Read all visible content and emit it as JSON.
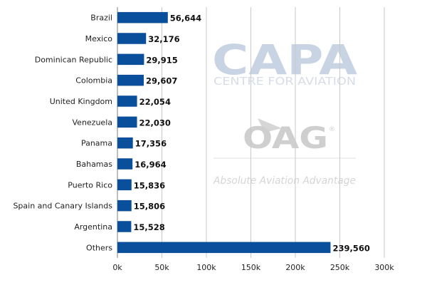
{
  "chart_data": {
    "type": "bar",
    "orientation": "horizontal",
    "categories": [
      "Brazil",
      "Mexico",
      "Dominican Republic",
      "Colombia",
      "United Kingdom",
      "Venezuela",
      "Panama",
      "Bahamas",
      "Puerto Rico",
      "Spain and Canary Islands",
      "Argentina",
      "Others"
    ],
    "values": [
      56644,
      32176,
      29915,
      29607,
      22054,
      22030,
      17356,
      16964,
      15836,
      15806,
      15528,
      239560
    ],
    "value_labels": [
      "56,644",
      "32,176",
      "29,915",
      "29,607",
      "22,054",
      "22,030",
      "17,356",
      "16,964",
      "15,836",
      "15,806",
      "15,528",
      "239,560"
    ],
    "xlim": [
      0,
      300000
    ],
    "xticks": [
      0,
      50000,
      100000,
      150000,
      200000,
      250000,
      300000
    ],
    "xtick_labels": [
      "0k",
      "50k",
      "100k",
      "150k",
      "200k",
      "250k",
      "300k"
    ],
    "grid": "vertical",
    "bar_color": "#0a4f9c",
    "gridline_color": "#c8c8c8"
  },
  "watermark": {
    "capa_logo": "CAPA",
    "capa_sub": "CENTRE FOR AVIATION",
    "oag_logo": "OAG",
    "oag_tagline": "Absolute Aviation Advantage"
  }
}
